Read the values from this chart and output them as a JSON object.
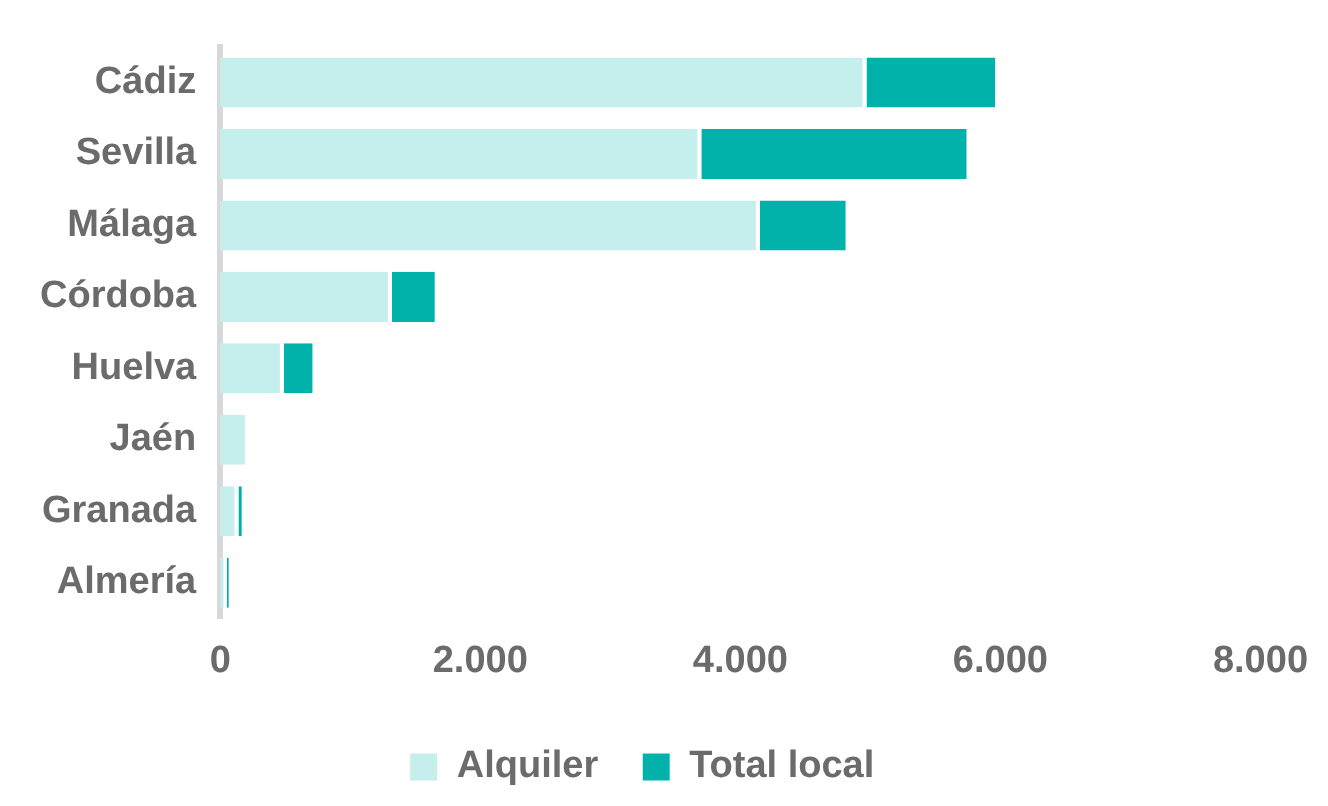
{
  "chart_data": {
    "type": "bar",
    "orientation": "horizontal",
    "stacked": true,
    "categories": [
      "Cádiz",
      "Sevilla",
      "Málaga",
      "Córdoba",
      "Huelva",
      "Jaén",
      "Granada",
      "Almería"
    ],
    "series": [
      {
        "name": "Alquiler",
        "color": "#c4efed",
        "values": [
          4970,
          3700,
          4150,
          1320,
          490,
          220,
          140,
          50
        ]
      },
      {
        "name": "Total local",
        "color": "#00b2a9",
        "values": [
          1020,
          2070,
          690,
          360,
          250,
          0,
          50,
          30
        ]
      }
    ],
    "xlim": [
      0,
      8000
    ],
    "xticks": [
      0,
      {
        "value": 2000,
        "label": "2.000"
      },
      {
        "value": 4000,
        "label": "4.000"
      },
      {
        "value": 6000,
        "label": "6.000"
      },
      {
        "value": 8000,
        "label": "8.000"
      }
    ],
    "grid": false,
    "legend": "bottom"
  }
}
